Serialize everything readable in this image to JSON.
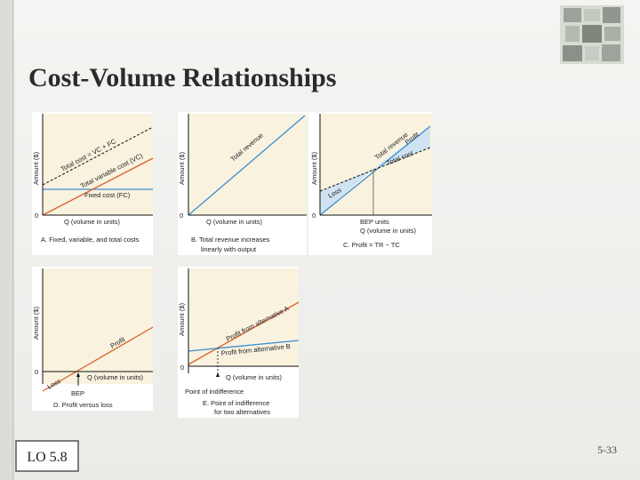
{
  "title": "Cost-Volume Relationships",
  "lo": "LO 5.8",
  "page_number": "5-33",
  "panels": [
    {
      "y_label": "Amount ($)",
      "origin": "0",
      "x_label": "Q (volume in units)",
      "caption": [
        "A. Fixed, variable, and total costs"
      ],
      "line_labels": [
        "Total cost = VC + FC",
        "Total variable cost (VC)",
        "Fixed cost (FC)"
      ]
    },
    {
      "y_label": "Amount ($)",
      "origin": "0",
      "x_label": "Q (volume in units)",
      "caption": [
        "B. Total revenue increases",
        "linearly with output"
      ],
      "line_labels": [
        "Total revenue"
      ]
    },
    {
      "y_label": "Amount ($)",
      "origin": "0",
      "x_label": "Q (volume in units)",
      "caption": [
        "C. Profit = TR − TC"
      ],
      "line_labels": [
        "Total revenue",
        "Profit",
        "Total cost",
        "Loss"
      ],
      "markers": [
        "BEP units"
      ]
    },
    {
      "y_label": "Amount ($)",
      "origin": "0",
      "x_label": "Q (volume in units)",
      "caption": [
        "D. Profit versus loss"
      ],
      "line_labels": [
        "Profit",
        "Loss"
      ],
      "markers": [
        "BEP"
      ]
    },
    {
      "y_label": "Amount ($)",
      "origin": "0",
      "x_label": "Q (volume in units)",
      "caption": [
        "E. Point of indifference",
        "for two alternatives"
      ],
      "line_labels": [
        "Profit from alternative A",
        "Profit from alternative B"
      ],
      "markers": [
        "Point of indifference"
      ]
    }
  ]
}
